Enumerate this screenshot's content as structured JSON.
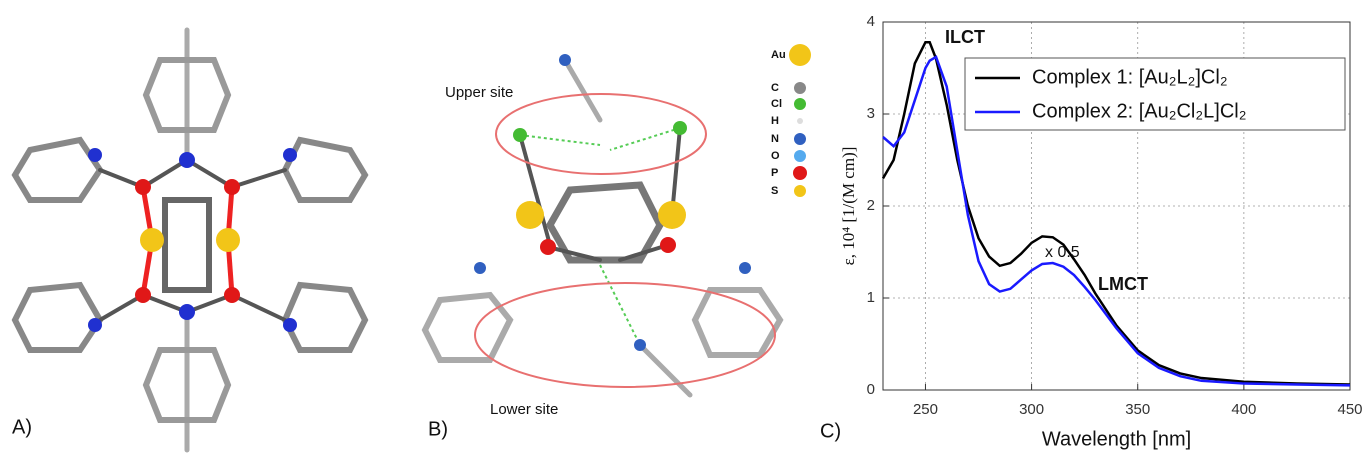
{
  "panels": {
    "a": {
      "label": "A)"
    },
    "b": {
      "label": "B)",
      "upper": "Upper site",
      "lower": "Lower site",
      "legend": [
        "Au",
        "C",
        "Cl",
        "H",
        "N",
        "O",
        "P",
        "S"
      ]
    }
  },
  "chart_data": {
    "type": "line",
    "panel_label": "C)",
    "xlabel": "Wavelength [nm]",
    "ylabel": "ε, 10⁴ [1/(M cm)]",
    "annotations": [
      "ILCT",
      "x 0.5",
      "LMCT"
    ],
    "x": [
      230,
      235,
      240,
      245,
      250,
      252,
      255,
      260,
      265,
      270,
      275,
      280,
      285,
      290,
      295,
      300,
      305,
      310,
      315,
      320,
      325,
      330,
      340,
      350,
      360,
      370,
      380,
      400,
      425,
      450
    ],
    "series": [
      {
        "name": "Complex 1: [Au₂L₂]Cl₂",
        "color": "#000000",
        "values": [
          2.3,
          2.5,
          3.0,
          3.55,
          3.78,
          3.78,
          3.6,
          3.1,
          2.5,
          2.0,
          1.65,
          1.45,
          1.35,
          1.38,
          1.48,
          1.6,
          1.67,
          1.66,
          1.58,
          1.42,
          1.25,
          1.05,
          0.7,
          0.43,
          0.27,
          0.18,
          0.13,
          0.09,
          0.07,
          0.06
        ]
      },
      {
        "name": "Complex 2: [Au₂Cl₂L]Cl₂",
        "color": "#1a1aff",
        "values": [
          2.75,
          2.65,
          2.8,
          3.15,
          3.5,
          3.58,
          3.62,
          3.3,
          2.6,
          1.9,
          1.4,
          1.15,
          1.07,
          1.1,
          1.2,
          1.3,
          1.37,
          1.38,
          1.34,
          1.25,
          1.12,
          0.98,
          0.67,
          0.4,
          0.24,
          0.15,
          0.1,
          0.07,
          0.06,
          0.05
        ]
      }
    ],
    "xlim": [
      230,
      450
    ],
    "xticks": [
      250,
      300,
      350,
      400,
      450
    ],
    "ylim": [
      0,
      4
    ],
    "yticks": [
      0,
      1,
      2,
      3,
      4
    ],
    "grid": true
  }
}
